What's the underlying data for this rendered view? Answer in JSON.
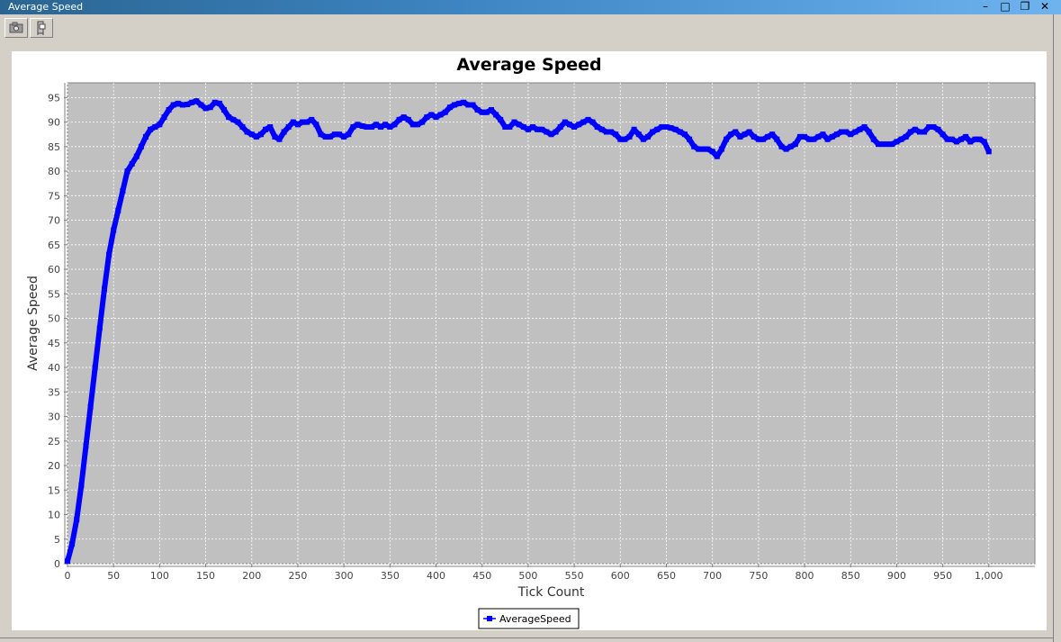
{
  "window": {
    "title": "Average Speed",
    "controls": {
      "minimize": "–",
      "maximize": "□",
      "restore": "❐",
      "close": "✕"
    }
  },
  "toolbar": {
    "buttons": [
      {
        "icon": "camera-icon"
      },
      {
        "icon": "settings-icon"
      }
    ]
  },
  "colors": {
    "plot_background": "#c0c0c0",
    "series": "#0000ff",
    "gridline": "#ffffff"
  },
  "chart_data": {
    "type": "line",
    "title": "Average Speed",
    "xlabel": "Tick Count",
    "ylabel": "Average Speed",
    "xlim": [
      0,
      1050
    ],
    "ylim": [
      0,
      98
    ],
    "x_ticks": [
      0,
      50,
      100,
      150,
      200,
      250,
      300,
      350,
      400,
      450,
      500,
      550,
      600,
      650,
      700,
      750,
      800,
      850,
      900,
      950,
      1000
    ],
    "x_tick_labels": [
      "0",
      "50",
      "100",
      "150",
      "200",
      "250",
      "300",
      "350",
      "400",
      "450",
      "500",
      "550",
      "600",
      "650",
      "700",
      "750",
      "800",
      "850",
      "900",
      "950",
      "1,000"
    ],
    "y_ticks": [
      0,
      5,
      10,
      15,
      20,
      25,
      30,
      35,
      40,
      45,
      50,
      55,
      60,
      65,
      70,
      75,
      80,
      85,
      90,
      95
    ],
    "grid": true,
    "legend": "bottom-center",
    "series": [
      {
        "name": "AverageSpeed",
        "color": "#0000ff",
        "marker": "square",
        "points": [
          [
            0,
            0.5
          ],
          [
            5,
            4
          ],
          [
            10,
            9
          ],
          [
            15,
            16
          ],
          [
            20,
            24
          ],
          [
            25,
            32
          ],
          [
            30,
            40
          ],
          [
            35,
            48
          ],
          [
            40,
            56
          ],
          [
            45,
            63
          ],
          [
            50,
            68
          ],
          [
            55,
            72
          ],
          [
            60,
            76
          ],
          [
            65,
            80
          ],
          [
            70,
            81.5
          ],
          [
            75,
            83
          ],
          [
            80,
            85
          ],
          [
            85,
            87
          ],
          [
            90,
            88.5
          ],
          [
            95,
            89
          ],
          [
            100,
            89.5
          ],
          [
            105,
            91
          ],
          [
            110,
            92.5
          ],
          [
            115,
            93.5
          ],
          [
            120,
            93.8
          ],
          [
            125,
            93.5
          ],
          [
            130,
            93.6
          ],
          [
            135,
            94
          ],
          [
            140,
            94.3
          ],
          [
            145,
            93.5
          ],
          [
            150,
            92.8
          ],
          [
            155,
            93
          ],
          [
            160,
            94
          ],
          [
            165,
            93.8
          ],
          [
            170,
            92.5
          ],
          [
            175,
            91
          ],
          [
            180,
            90.5
          ],
          [
            185,
            90
          ],
          [
            190,
            89
          ],
          [
            195,
            88
          ],
          [
            200,
            87.5
          ],
          [
            205,
            87
          ],
          [
            210,
            87.5
          ],
          [
            215,
            88.5
          ],
          [
            220,
            89
          ],
          [
            225,
            87
          ],
          [
            230,
            86.5
          ],
          [
            235,
            88
          ],
          [
            240,
            89
          ],
          [
            245,
            90
          ],
          [
            250,
            89.5
          ],
          [
            255,
            90
          ],
          [
            260,
            90
          ],
          [
            265,
            90.5
          ],
          [
            270,
            89.5
          ],
          [
            275,
            87.5
          ],
          [
            280,
            87
          ],
          [
            285,
            87
          ],
          [
            290,
            87.5
          ],
          [
            295,
            87.5
          ],
          [
            300,
            87
          ],
          [
            305,
            87.5
          ],
          [
            310,
            89
          ],
          [
            315,
            89.5
          ],
          [
            320,
            89.2
          ],
          [
            325,
            89
          ],
          [
            330,
            89
          ],
          [
            335,
            89.5
          ],
          [
            340,
            89
          ],
          [
            345,
            89.5
          ],
          [
            350,
            89
          ],
          [
            355,
            89.5
          ],
          [
            360,
            90.5
          ],
          [
            365,
            91
          ],
          [
            370,
            90.5
          ],
          [
            375,
            89.5
          ],
          [
            380,
            89.5
          ],
          [
            385,
            90
          ],
          [
            390,
            91
          ],
          [
            395,
            91.5
          ],
          [
            400,
            91
          ],
          [
            405,
            91.5
          ],
          [
            410,
            92
          ],
          [
            415,
            93
          ],
          [
            420,
            93.5
          ],
          [
            425,
            93.8
          ],
          [
            430,
            94
          ],
          [
            435,
            93.5
          ],
          [
            440,
            93.5
          ],
          [
            445,
            92.5
          ],
          [
            450,
            92
          ],
          [
            455,
            92
          ],
          [
            460,
            92.5
          ],
          [
            465,
            91.5
          ],
          [
            470,
            90.5
          ],
          [
            475,
            89
          ],
          [
            480,
            89
          ],
          [
            485,
            90
          ],
          [
            490,
            89.5
          ],
          [
            495,
            89
          ],
          [
            500,
            88.5
          ],
          [
            505,
            89
          ],
          [
            510,
            88.5
          ],
          [
            515,
            88.5
          ],
          [
            520,
            88
          ],
          [
            525,
            87.5
          ],
          [
            530,
            88
          ],
          [
            535,
            89
          ],
          [
            540,
            90
          ],
          [
            545,
            89.5
          ],
          [
            550,
            89
          ],
          [
            555,
            89.5
          ],
          [
            560,
            90
          ],
          [
            565,
            90.5
          ],
          [
            570,
            90
          ],
          [
            575,
            89
          ],
          [
            580,
            88.5
          ],
          [
            585,
            88
          ],
          [
            590,
            88
          ],
          [
            595,
            87.5
          ],
          [
            600,
            86.5
          ],
          [
            605,
            86.5
          ],
          [
            610,
            87
          ],
          [
            615,
            88.5
          ],
          [
            620,
            87.5
          ],
          [
            625,
            86.5
          ],
          [
            630,
            87
          ],
          [
            635,
            88
          ],
          [
            640,
            88.5
          ],
          [
            645,
            89
          ],
          [
            650,
            89
          ],
          [
            655,
            88.8
          ],
          [
            660,
            88.5
          ],
          [
            665,
            88
          ],
          [
            670,
            87.5
          ],
          [
            675,
            86.5
          ],
          [
            680,
            85
          ],
          [
            685,
            84.5
          ],
          [
            690,
            84.5
          ],
          [
            695,
            84.5
          ],
          [
            700,
            84
          ],
          [
            705,
            83
          ],
          [
            710,
            84.5
          ],
          [
            715,
            86.5
          ],
          [
            720,
            87.5
          ],
          [
            725,
            88
          ],
          [
            730,
            87
          ],
          [
            735,
            87.5
          ],
          [
            740,
            88
          ],
          [
            745,
            87
          ],
          [
            750,
            86.5
          ],
          [
            755,
            86.5
          ],
          [
            760,
            87
          ],
          [
            765,
            87.5
          ],
          [
            770,
            86.5
          ],
          [
            775,
            85
          ],
          [
            780,
            84.5
          ],
          [
            785,
            85
          ],
          [
            790,
            85.5
          ],
          [
            795,
            87
          ],
          [
            800,
            87
          ],
          [
            805,
            86.5
          ],
          [
            810,
            86.5
          ],
          [
            815,
            87
          ],
          [
            820,
            87.5
          ],
          [
            825,
            86.5
          ],
          [
            830,
            87
          ],
          [
            835,
            87.5
          ],
          [
            840,
            88
          ],
          [
            845,
            88
          ],
          [
            850,
            87.5
          ],
          [
            855,
            88
          ],
          [
            860,
            88.5
          ],
          [
            865,
            89
          ],
          [
            870,
            88
          ],
          [
            875,
            86.5
          ],
          [
            880,
            85.5
          ],
          [
            885,
            85.5
          ],
          [
            890,
            85.5
          ],
          [
            895,
            85.5
          ],
          [
            900,
            86
          ],
          [
            905,
            86.5
          ],
          [
            910,
            87
          ],
          [
            915,
            88
          ],
          [
            920,
            88.5
          ],
          [
            925,
            88
          ],
          [
            930,
            88
          ],
          [
            935,
            89
          ],
          [
            940,
            89
          ],
          [
            945,
            88.5
          ],
          [
            950,
            87.5
          ],
          [
            955,
            86.5
          ],
          [
            960,
            86.5
          ],
          [
            965,
            86
          ],
          [
            970,
            86.5
          ],
          [
            975,
            87
          ],
          [
            980,
            86
          ],
          [
            985,
            86.5
          ],
          [
            990,
            86.5
          ],
          [
            995,
            86
          ],
          [
            1000,
            84
          ]
        ]
      }
    ]
  }
}
